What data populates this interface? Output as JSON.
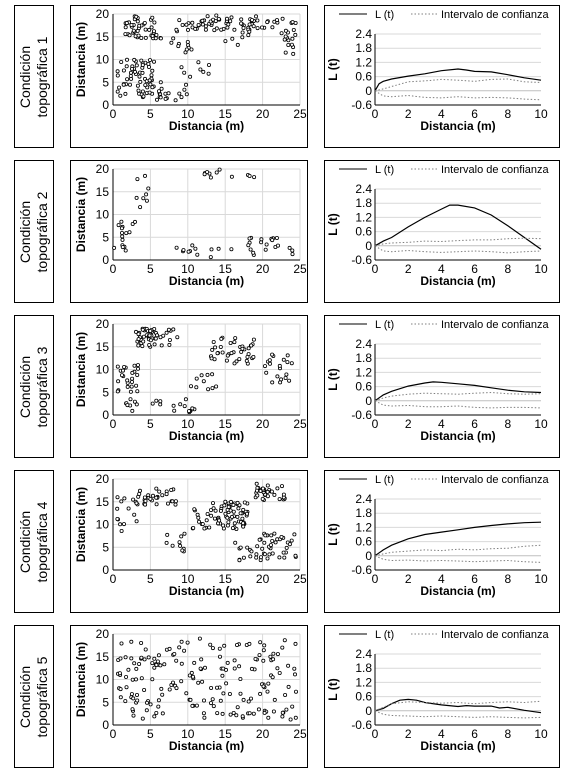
{
  "chart_data": [
    {
      "type": "scatter",
      "title": "",
      "xlabel": "Distancia (m)",
      "ylabel": "Distancia (m)",
      "xlim": [
        0,
        25
      ],
      "ylim": [
        0,
        20
      ],
      "xticks": [
        0,
        5,
        10,
        15,
        20,
        25
      ],
      "yticks": [
        0,
        5,
        10,
        15,
        20
      ],
      "seed": 11,
      "clusters": [
        [
          4,
          17,
          2.5,
          2.5,
          45
        ],
        [
          12,
          18,
          4,
          1.8,
          40
        ],
        [
          20,
          18,
          2,
          1.5,
          20
        ],
        [
          3,
          6,
          2.5,
          4,
          60
        ],
        [
          23.5,
          15,
          1,
          4,
          20
        ],
        [
          17,
          16,
          2,
          3,
          15
        ],
        [
          7,
          3,
          3,
          2,
          20
        ],
        [
          11,
          8,
          2,
          2,
          8
        ],
        [
          9,
          13,
          2,
          2,
          10
        ]
      ]
    },
    {
      "type": "line",
      "xlabel": "Distancia (m)",
      "ylabel": "L (t)",
      "xlim": [
        0,
        10
      ],
      "ylim": [
        -0.6,
        2.4
      ],
      "xticks": [
        0,
        2,
        4,
        6,
        8,
        10
      ],
      "yticks": [
        -0.6,
        0,
        0.6,
        1.2,
        1.8,
        2.4
      ],
      "legend": [
        "L (t)",
        "Intervalo de confianza"
      ],
      "legend_position": "top",
      "series": [
        {
          "name": "L (t)",
          "style": "solid",
          "x": [
            0,
            0.25,
            0.5,
            1,
            2,
            3,
            4,
            5,
            5.5,
            6,
            7,
            8,
            9,
            10
          ],
          "y": [
            0,
            0.3,
            0.4,
            0.5,
            0.62,
            0.72,
            0.85,
            0.92,
            0.88,
            0.82,
            0.8,
            0.68,
            0.55,
            0.45
          ]
        },
        {
          "name": "Intervalo de confianza",
          "style": "dotted",
          "x": [
            0,
            0.5,
            1,
            2,
            3,
            4,
            5,
            6,
            7,
            8,
            9,
            10
          ],
          "y": [
            0,
            0.08,
            0.18,
            0.38,
            0.42,
            0.48,
            0.45,
            0.4,
            0.48,
            0.5,
            0.38,
            0.35
          ]
        },
        {
          "name": "Intervalo de confianza",
          "style": "dotted",
          "x": [
            0,
            0.5,
            1,
            2,
            3,
            4,
            5,
            6,
            7,
            8,
            9,
            10
          ],
          "y": [
            0,
            -0.22,
            -0.25,
            -0.2,
            -0.28,
            -0.3,
            -0.25,
            -0.3,
            -0.28,
            -0.3,
            -0.35,
            -0.38
          ]
        }
      ]
    },
    {
      "type": "scatter",
      "title": "",
      "xlabel": "Distancia (m)",
      "ylabel": "Distancia (m)",
      "xlim": [
        0,
        25
      ],
      "ylim": [
        0,
        20
      ],
      "xticks": [
        0,
        5,
        10,
        15,
        20,
        25
      ],
      "yticks": [
        0,
        5,
        10,
        15,
        20
      ],
      "seed": 23,
      "clusters": [
        [
          2,
          6,
          1.5,
          3,
          12
        ],
        [
          4,
          15,
          1,
          4,
          8
        ],
        [
          14,
          19,
          2,
          1,
          8
        ],
        [
          21,
          3,
          3,
          2,
          20
        ],
        [
          14,
          2,
          4,
          1.5,
          8
        ],
        [
          18,
          18,
          1,
          1,
          3
        ],
        [
          9.5,
          2,
          1,
          1,
          4
        ],
        [
          1,
          2,
          1,
          1,
          4
        ]
      ]
    },
    {
      "type": "line",
      "xlabel": "Distancia (m)",
      "ylabel": "L (t)",
      "xlim": [
        0,
        10
      ],
      "ylim": [
        -0.6,
        2.4
      ],
      "xticks": [
        0,
        2,
        4,
        6,
        8,
        10
      ],
      "yticks": [
        -0.6,
        0,
        0.6,
        1.2,
        1.8,
        2.4
      ],
      "legend": [
        "L (t)",
        "Intervalo de confianza"
      ],
      "legend_position": "top",
      "series": [
        {
          "name": "L (t)",
          "style": "solid",
          "x": [
            0,
            0.5,
            1,
            2,
            3,
            4,
            4.5,
            5,
            6,
            7,
            8,
            9,
            10
          ],
          "y": [
            0,
            0.2,
            0.35,
            0.8,
            1.2,
            1.55,
            1.72,
            1.72,
            1.6,
            1.3,
            0.85,
            0.35,
            -0.15
          ]
        },
        {
          "name": "Intervalo de confianza",
          "style": "dotted",
          "x": [
            0,
            0.5,
            1,
            2,
            3,
            4,
            5,
            6,
            7,
            8,
            9,
            10
          ],
          "y": [
            0,
            0.08,
            0.12,
            0.15,
            0.2,
            0.18,
            0.22,
            0.25,
            0.25,
            0.3,
            0.32,
            0.3
          ]
        },
        {
          "name": "Intervalo de confianza",
          "style": "dotted",
          "x": [
            0,
            0.5,
            1,
            2,
            3,
            4,
            5,
            6,
            7,
            8,
            9,
            10
          ],
          "y": [
            0,
            -0.22,
            -0.25,
            -0.2,
            -0.25,
            -0.28,
            -0.25,
            -0.22,
            -0.25,
            -0.3,
            -0.25,
            -0.22
          ]
        }
      ]
    },
    {
      "type": "scatter",
      "title": "",
      "xlabel": "Distancia (m)",
      "ylabel": "Distancia (m)",
      "xlim": [
        0,
        25
      ],
      "ylim": [
        0,
        20
      ],
      "xticks": [
        0,
        5,
        10,
        15,
        20,
        25
      ],
      "yticks": [
        0,
        5,
        10,
        15,
        20
      ],
      "seed": 37,
      "clusters": [
        [
          6,
          17,
          3,
          2,
          50
        ],
        [
          2,
          8,
          1.5,
          3,
          25
        ],
        [
          16,
          14,
          3,
          3,
          40
        ],
        [
          22,
          11,
          2,
          4,
          20
        ],
        [
          8,
          2,
          3,
          1.5,
          15
        ],
        [
          12,
          7,
          2,
          2,
          10
        ],
        [
          3,
          2,
          1.5,
          1.5,
          8
        ]
      ]
    },
    {
      "type": "line",
      "xlabel": "Distancia (m)",
      "ylabel": "L (t)",
      "xlim": [
        0,
        10
      ],
      "ylim": [
        -0.6,
        2.4
      ],
      "xticks": [
        0,
        2,
        4,
        6,
        8,
        10
      ],
      "yticks": [
        -0.6,
        0,
        0.6,
        1.2,
        1.8,
        2.4
      ],
      "legend": [
        "L (t)",
        "Intervalo de confianza"
      ],
      "legend_position": "top",
      "series": [
        {
          "name": "L (t)",
          "style": "solid",
          "x": [
            0,
            0.5,
            1,
            2,
            3,
            3.5,
            4,
            5,
            6,
            7,
            8,
            9,
            10
          ],
          "y": [
            0,
            0.25,
            0.4,
            0.62,
            0.75,
            0.8,
            0.78,
            0.72,
            0.65,
            0.55,
            0.45,
            0.38,
            0.35
          ]
        },
        {
          "name": "Intervalo de confianza",
          "style": "dotted",
          "x": [
            0,
            0.5,
            1,
            2,
            3,
            4,
            5,
            6,
            7,
            8,
            9,
            10
          ],
          "y": [
            0,
            0.12,
            0.2,
            0.28,
            0.32,
            0.3,
            0.28,
            0.32,
            0.35,
            0.3,
            0.28,
            0.3
          ]
        },
        {
          "name": "Intervalo de confianza",
          "style": "dotted",
          "x": [
            0,
            0.5,
            1,
            2,
            3,
            4,
            5,
            6,
            7,
            8,
            9,
            10
          ],
          "y": [
            0,
            -0.18,
            -0.22,
            -0.2,
            -0.25,
            -0.25,
            -0.22,
            -0.28,
            -0.3,
            -0.28,
            -0.28,
            -0.3
          ]
        }
      ]
    },
    {
      "type": "scatter",
      "title": "",
      "xlabel": "Distancia (m)",
      "ylabel": "Distancia (m)",
      "xlim": [
        0,
        25
      ],
      "ylim": [
        0,
        20
      ],
      "xticks": [
        0,
        5,
        10,
        15,
        20,
        25
      ],
      "yticks": [
        0,
        5,
        10,
        15,
        20
      ],
      "seed": 41,
      "clusters": [
        [
          16,
          12,
          2,
          3,
          60
        ],
        [
          21,
          17,
          2,
          2,
          35
        ],
        [
          6,
          16,
          3,
          2,
          30
        ],
        [
          22,
          5,
          2.5,
          3,
          35
        ],
        [
          12,
          12,
          2,
          3,
          20
        ],
        [
          2,
          12,
          1.5,
          4,
          15
        ],
        [
          18,
          4,
          2,
          2,
          15
        ],
        [
          9,
          6,
          2,
          2,
          10
        ]
      ]
    },
    {
      "type": "line",
      "xlabel": "Distancia (m)",
      "ylabel": "L (t)",
      "xlim": [
        0,
        10
      ],
      "ylim": [
        -0.6,
        2.4
      ],
      "xticks": [
        0,
        2,
        4,
        6,
        8,
        10
      ],
      "yticks": [
        -0.6,
        0,
        0.6,
        1.2,
        1.8,
        2.4
      ],
      "legend": [
        "L (t)",
        "Intervalo de confianza"
      ],
      "legend_position": "top",
      "series": [
        {
          "name": "L (t)",
          "style": "solid",
          "x": [
            0,
            0.5,
            1,
            2,
            3,
            4,
            5,
            6,
            7,
            8,
            9,
            10
          ],
          "y": [
            0,
            0.25,
            0.45,
            0.72,
            0.9,
            1.0,
            1.1,
            1.2,
            1.28,
            1.35,
            1.4,
            1.42
          ]
        },
        {
          "name": "Intervalo de confianza",
          "style": "dotted",
          "x": [
            0,
            0.5,
            1,
            2,
            3,
            4,
            5,
            6,
            7,
            8,
            9,
            10
          ],
          "y": [
            0,
            0.08,
            0.15,
            0.2,
            0.25,
            0.22,
            0.28,
            0.25,
            0.3,
            0.32,
            0.4,
            0.45
          ]
        },
        {
          "name": "Intervalo de confianza",
          "style": "dotted",
          "x": [
            0,
            0.5,
            1,
            2,
            3,
            4,
            5,
            6,
            7,
            8,
            9,
            10
          ],
          "y": [
            0,
            -0.15,
            -0.2,
            -0.18,
            -0.22,
            -0.2,
            -0.22,
            -0.25,
            -0.22,
            -0.2,
            -0.25,
            -0.28
          ]
        }
      ]
    },
    {
      "type": "scatter",
      "title": "",
      "xlabel": "Distancia (m)",
      "ylabel": "Distancia (m)",
      "xlim": [
        0,
        25
      ],
      "ylim": [
        0,
        20
      ],
      "xticks": [
        0,
        5,
        10,
        15,
        20,
        25
      ],
      "yticks": [
        0,
        5,
        10,
        15,
        20
      ],
      "seed": 53,
      "clusters": [
        [
          12.5,
          10,
          12,
          9,
          190
        ]
      ]
    },
    {
      "type": "line",
      "xlabel": "Distancia (m)",
      "ylabel": "L (t)",
      "xlim": [
        0,
        10
      ],
      "ylim": [
        -0.6,
        2.4
      ],
      "xticks": [
        0,
        2,
        4,
        6,
        8,
        10
      ],
      "yticks": [
        -0.6,
        0,
        0.6,
        1.2,
        1.8,
        2.4
      ],
      "legend": [
        "L (t)",
        "Intervalo de confianza"
      ],
      "legend_position": "top",
      "series": [
        {
          "name": "L (t)",
          "style": "solid",
          "x": [
            0,
            0.5,
            1,
            1.5,
            2,
            2.5,
            3,
            4,
            5,
            5.5,
            6,
            7,
            7.5,
            8,
            9,
            10
          ],
          "y": [
            0,
            0.1,
            0.3,
            0.45,
            0.48,
            0.45,
            0.35,
            0.25,
            0.18,
            0.22,
            0.2,
            0.2,
            0.12,
            0.15,
            0.02,
            -0.08
          ]
        },
        {
          "name": "Intervalo de confianza",
          "style": "dotted",
          "x": [
            0,
            0.5,
            1,
            2,
            3,
            4,
            5,
            6,
            7,
            8,
            9,
            10
          ],
          "y": [
            0,
            0.15,
            0.3,
            0.38,
            0.35,
            0.32,
            0.35,
            0.3,
            0.35,
            0.38,
            0.35,
            0.4
          ]
        },
        {
          "name": "Intervalo de confianza",
          "style": "dotted",
          "x": [
            0,
            0.5,
            1,
            2,
            3,
            4,
            5,
            6,
            7,
            8,
            9,
            10
          ],
          "y": [
            0,
            -0.15,
            -0.2,
            -0.22,
            -0.25,
            -0.22,
            -0.25,
            -0.28,
            -0.25,
            -0.28,
            -0.3,
            -0.28
          ]
        }
      ]
    }
  ],
  "conditions": [
    {
      "line1": "Condición",
      "line2": "topográfica 1"
    },
    {
      "line1": "Condición",
      "line2": "topográfica 2"
    },
    {
      "line1": "Condición",
      "line2": "topográfica 3"
    },
    {
      "line1": "Condición",
      "line2": "topográfica 4"
    },
    {
      "line1": "Condición",
      "line2": "topográfica 5"
    }
  ],
  "colors": {
    "line": "#000000",
    "dotted": "#7f7f7f",
    "points": "#000000"
  }
}
